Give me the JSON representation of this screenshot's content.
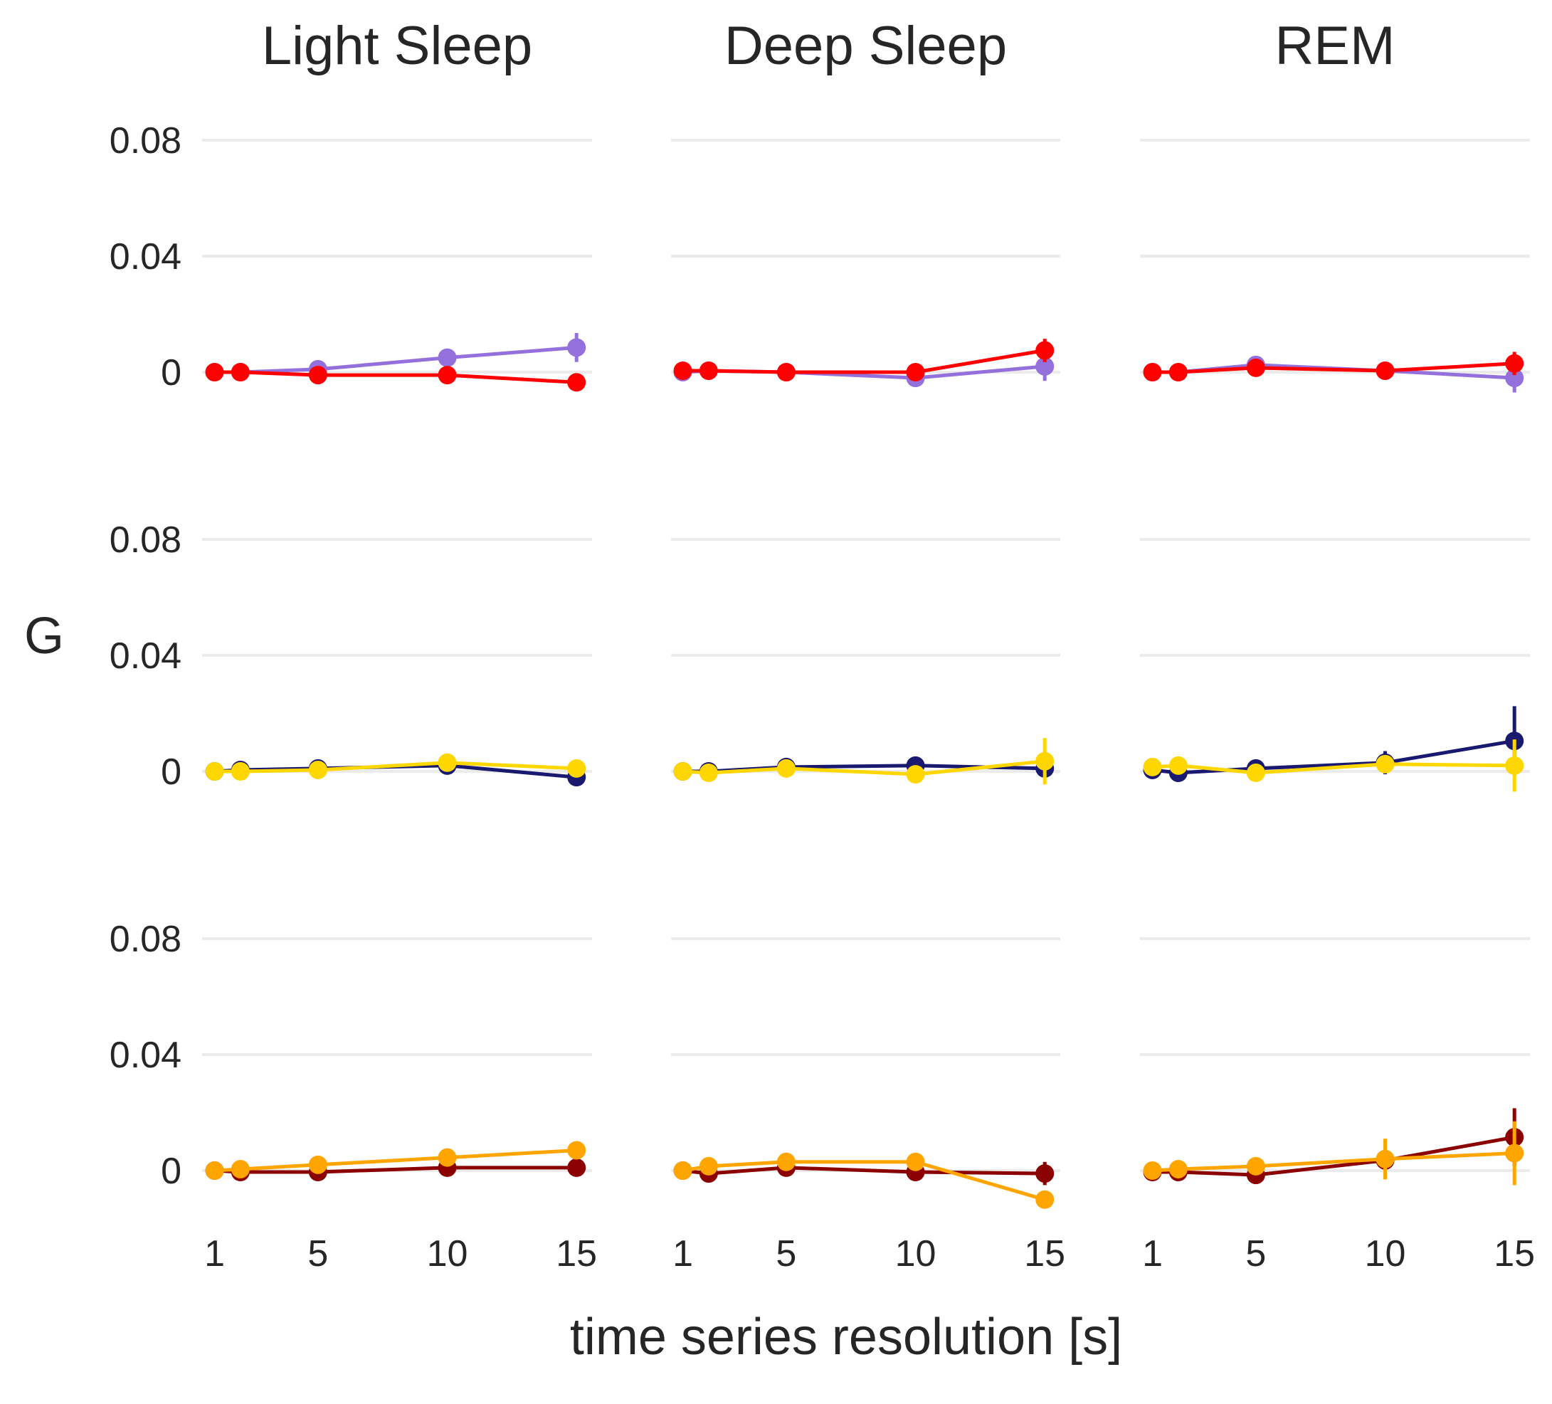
{
  "chart_data": {
    "type": "line",
    "xlabel": "time series resolution [s]",
    "ylabel": "G",
    "columns": [
      "Light Sleep",
      "Deep Sleep",
      "REM"
    ],
    "x": [
      1,
      2,
      5,
      10,
      15
    ],
    "x_ticks": [
      1,
      5,
      10,
      15
    ],
    "x_tick_labels": [
      "1",
      "5",
      "10",
      "15"
    ],
    "xlim": [
      0.6,
      15.6
    ],
    "y_ticks": [
      0,
      0.04,
      0.08
    ],
    "y_tick_labels": [
      "0",
      "0.04",
      "0.08"
    ],
    "ylim": [
      -0.02,
      0.095
    ],
    "grid": "horizontal major lines",
    "legend": "none",
    "rows": [
      {
        "series": [
          {
            "color": "#9370DB",
            "panels": [
              {
                "values": [
                  0.0,
                  0.0,
                  0.001,
                  0.005,
                  0.0085
                ],
                "errors": [
                  0,
                  0,
                  0,
                  0,
                  0.005
                ]
              },
              {
                "values": [
                  0.0,
                  0.0005,
                  0.0,
                  -0.002,
                  0.002
                ],
                "errors": [
                  0,
                  0,
                  0,
                  0,
                  0.005
                ]
              },
              {
                "values": [
                  0.0,
                  0.0,
                  0.0025,
                  0.0005,
                  -0.002
                ],
                "errors": [
                  0,
                  0,
                  0,
                  0,
                  0.005
                ]
              }
            ]
          },
          {
            "color": "#FF0000",
            "panels": [
              {
                "values": [
                  0.0,
                  0.0,
                  -0.001,
                  -0.001,
                  -0.0035
                ],
                "errors": [
                  0,
                  0,
                  0,
                  0,
                  0
                ]
              },
              {
                "values": [
                  0.0005,
                  0.0005,
                  0.0,
                  0.0,
                  0.0075
                ],
                "errors": [
                  0,
                  0,
                  0,
                  0.002,
                  0.004
                ]
              },
              {
                "values": [
                  0.0,
                  0.0,
                  0.0015,
                  0.0005,
                  0.003
                ],
                "errors": [
                  0,
                  0,
                  0,
                  0,
                  0.004
                ]
              }
            ]
          }
        ]
      },
      {
        "series": [
          {
            "color": "#191970",
            "panels": [
              {
                "values": [
                  0.0,
                  0.0005,
                  0.001,
                  0.002,
                  -0.002
                ],
                "errors": [
                  0,
                  0,
                  0,
                  0,
                  0
                ]
              },
              {
                "values": [
                  0.0,
                  0.0,
                  0.0015,
                  0.002,
                  0.001
                ],
                "errors": [
                  0,
                  0,
                  0,
                  0.003,
                  0
                ]
              },
              {
                "values": [
                  0.0005,
                  -0.0005,
                  0.001,
                  0.003,
                  0.0105
                ],
                "errors": [
                  0,
                  0,
                  0,
                  0.004,
                  0.012
                ]
              }
            ]
          },
          {
            "color": "#FFD700",
            "panels": [
              {
                "values": [
                  0.0,
                  0.0,
                  0.0005,
                  0.003,
                  0.001
                ],
                "errors": [
                  0,
                  0,
                  0,
                  0,
                  0
                ]
              },
              {
                "values": [
                  0.0,
                  -0.0005,
                  0.001,
                  -0.001,
                  0.0035
                ],
                "errors": [
                  0,
                  0,
                  0,
                  0.002,
                  0.008
                ]
              },
              {
                "values": [
                  0.0015,
                  0.002,
                  -0.0005,
                  0.0025,
                  0.002
                ],
                "errors": [
                  0,
                  0,
                  0,
                  0,
                  0.009
                ]
              }
            ]
          }
        ]
      },
      {
        "series": [
          {
            "color": "#8B0000",
            "panels": [
              {
                "values": [
                  0.0,
                  -0.0005,
                  -0.0005,
                  0.001,
                  0.001
                ],
                "errors": [
                  0,
                  0,
                  0,
                  0,
                  0
                ]
              },
              {
                "values": [
                  0.0,
                  -0.001,
                  0.001,
                  -0.0005,
                  -0.001
                ],
                "errors": [
                  0,
                  0,
                  0,
                  0.003,
                  0.004
                ]
              },
              {
                "values": [
                  -0.0005,
                  -0.0005,
                  -0.0015,
                  0.0035,
                  0.0115
                ],
                "errors": [
                  0,
                  0,
                  0,
                  0.003,
                  0.01
                ]
              }
            ]
          },
          {
            "color": "#FFA500",
            "panels": [
              {
                "values": [
                  0.0,
                  0.0005,
                  0.002,
                  0.0045,
                  0.007
                ],
                "errors": [
                  0,
                  0,
                  0,
                  0,
                  0.003
                ]
              },
              {
                "values": [
                  0.0,
                  0.0015,
                  0.003,
                  0.003,
                  -0.01
                ],
                "errors": [
                  0,
                  0,
                  0,
                  0,
                  0.002
                ]
              },
              {
                "values": [
                  0.0,
                  0.0005,
                  0.0015,
                  0.004,
                  0.006
                ],
                "errors": [
                  0,
                  0,
                  0,
                  0.007,
                  0.011
                ]
              }
            ]
          }
        ]
      }
    ]
  }
}
